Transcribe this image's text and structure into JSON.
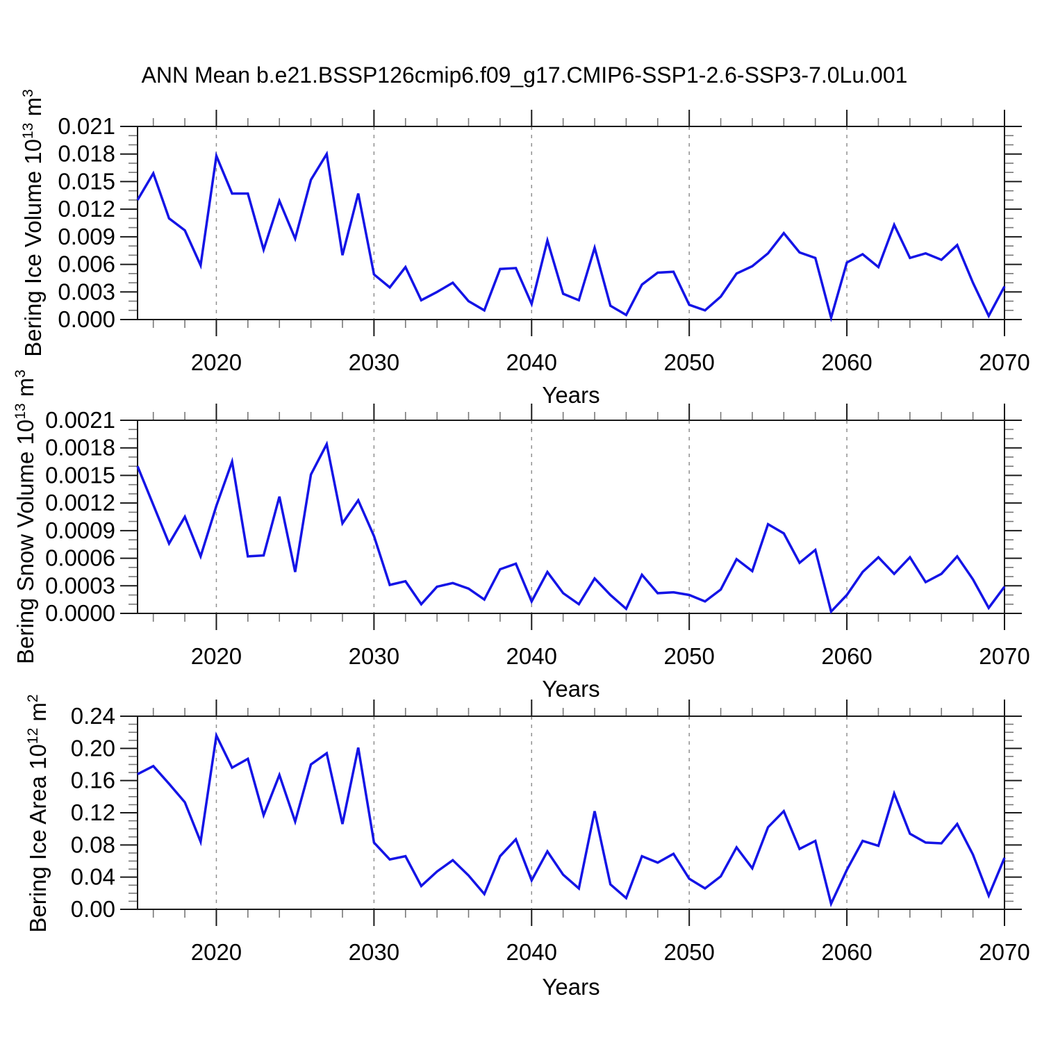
{
  "title": "ANN Mean b.e21.BSSP126cmip6.f09_g17.CMIP6-SSP1-2.6-SSP3-7.0Lu.001",
  "colors": {
    "line": "#1414e6",
    "grid": "#909090",
    "axis": "#1a1a1a",
    "minor_tick": "#777777",
    "text": "#000000"
  },
  "chart_data": {
    "type": "line",
    "title": "ANN Mean b.e21.BSSP126cmip6.f09_g17.CMIP6-SSP1-2.6-SSP3-7.0Lu.001",
    "xlabel": "Years",
    "x_range": [
      2015,
      2070
    ],
    "x_major_ticks": [
      2020,
      2030,
      2040,
      2050,
      2060,
      2070
    ],
    "x_minor_step": 2,
    "grid_years": [
      2020,
      2030,
      2040,
      2050,
      2060
    ],
    "legend_position": "none",
    "grid": "vertical-dashed",
    "years": [
      2015,
      2016,
      2017,
      2018,
      2019,
      2020,
      2021,
      2022,
      2023,
      2024,
      2025,
      2026,
      2027,
      2028,
      2029,
      2030,
      2031,
      2032,
      2033,
      2034,
      2035,
      2036,
      2037,
      2038,
      2039,
      2040,
      2041,
      2042,
      2043,
      2044,
      2045,
      2046,
      2047,
      2048,
      2049,
      2050,
      2051,
      2052,
      2053,
      2054,
      2055,
      2056,
      2057,
      2058,
      2059,
      2060,
      2061,
      2062,
      2063,
      2064,
      2065,
      2066,
      2067,
      2068,
      2069,
      2070
    ],
    "panels": [
      {
        "name": "bering-ice-volume",
        "ylabel_base": "Bering Ice Volume 10",
        "ylabel_exp": "13",
        "ylabel_unit": " m",
        "ylabel_unit_exp": "3",
        "ylim": [
          0,
          0.021
        ],
        "y_major_step": 0.003,
        "y_minor_step": 0.001,
        "y_tick_labels": [
          "0.000",
          "0.003",
          "0.006",
          "0.009",
          "0.012",
          "0.015",
          "0.018",
          "0.021"
        ],
        "values": [
          0.013,
          0.0159,
          0.011,
          0.0097,
          0.0059,
          0.0178,
          0.0137,
          0.0137,
          0.0076,
          0.0129,
          0.0088,
          0.0152,
          0.018,
          0.007,
          0.0137,
          0.0049,
          0.0035,
          0.0057,
          0.0021,
          0.003,
          0.004,
          0.002,
          0.001,
          0.0055,
          0.0056,
          0.0017,
          0.0086,
          0.0028,
          0.0021,
          0.0078,
          0.0015,
          0.0005,
          0.0038,
          0.0051,
          0.0052,
          0.0016,
          0.001,
          0.0025,
          0.005,
          0.0058,
          0.0072,
          0.0094,
          0.0073,
          0.0067,
          0.0002,
          0.0062,
          0.0071,
          0.0057,
          0.0103,
          0.0067,
          0.0072,
          0.0065,
          0.0081,
          0.004,
          0.0004,
          0.0036
        ]
      },
      {
        "name": "bering-snow-volume",
        "ylabel_base": "Bering Snow Volume 10",
        "ylabel_exp": "13",
        "ylabel_unit": " m",
        "ylabel_unit_exp": "3",
        "ylim": [
          0,
          0.0021
        ],
        "y_major_step": 0.0003,
        "y_minor_step": 0.0001,
        "y_tick_labels": [
          "0.0000",
          "0.0003",
          "0.0006",
          "0.0009",
          "0.0012",
          "0.0015",
          "0.0018",
          "0.0021"
        ],
        "values": [
          0.0016,
          0.00118,
          0.00076,
          0.00105,
          0.00062,
          0.00117,
          0.00165,
          0.00062,
          0.00063,
          0.00127,
          0.00045,
          0.00151,
          0.00184,
          0.00098,
          0.00123,
          0.00084,
          0.00031,
          0.00035,
          0.0001,
          0.00029,
          0.00033,
          0.00027,
          0.00015,
          0.00048,
          0.00054,
          0.00013,
          0.00045,
          0.00022,
          0.0001,
          0.00038,
          0.0002,
          5e-05,
          0.00042,
          0.00022,
          0.00023,
          0.0002,
          0.00013,
          0.00026,
          0.00059,
          0.00046,
          0.00097,
          0.00087,
          0.00055,
          0.00069,
          2e-05,
          0.0002,
          0.00045,
          0.00061,
          0.00043,
          0.00061,
          0.00034,
          0.00043,
          0.00062,
          0.00037,
          6e-05,
          0.00029
        ]
      },
      {
        "name": "bering-ice-area",
        "ylabel_base": "Bering Ice Area 10",
        "ylabel_exp": "12",
        "ylabel_unit": " m",
        "ylabel_unit_exp": "2",
        "ylim": [
          0,
          0.24
        ],
        "y_major_step": 0.04,
        "y_minor_step": 0.01,
        "y_tick_labels": [
          "0.00",
          "0.04",
          "0.08",
          "0.12",
          "0.16",
          "0.20",
          "0.24"
        ],
        "values": [
          0.168,
          0.178,
          0.156,
          0.133,
          0.084,
          0.216,
          0.176,
          0.187,
          0.117,
          0.167,
          0.109,
          0.18,
          0.194,
          0.106,
          0.201,
          0.083,
          0.062,
          0.066,
          0.029,
          0.047,
          0.061,
          0.042,
          0.019,
          0.066,
          0.087,
          0.036,
          0.072,
          0.043,
          0.026,
          0.122,
          0.031,
          0.014,
          0.066,
          0.058,
          0.069,
          0.038,
          0.026,
          0.041,
          0.077,
          0.051,
          0.102,
          0.122,
          0.075,
          0.085,
          0.007,
          0.049,
          0.085,
          0.079,
          0.144,
          0.094,
          0.083,
          0.082,
          0.106,
          0.068,
          0.017,
          0.064
        ]
      }
    ]
  }
}
